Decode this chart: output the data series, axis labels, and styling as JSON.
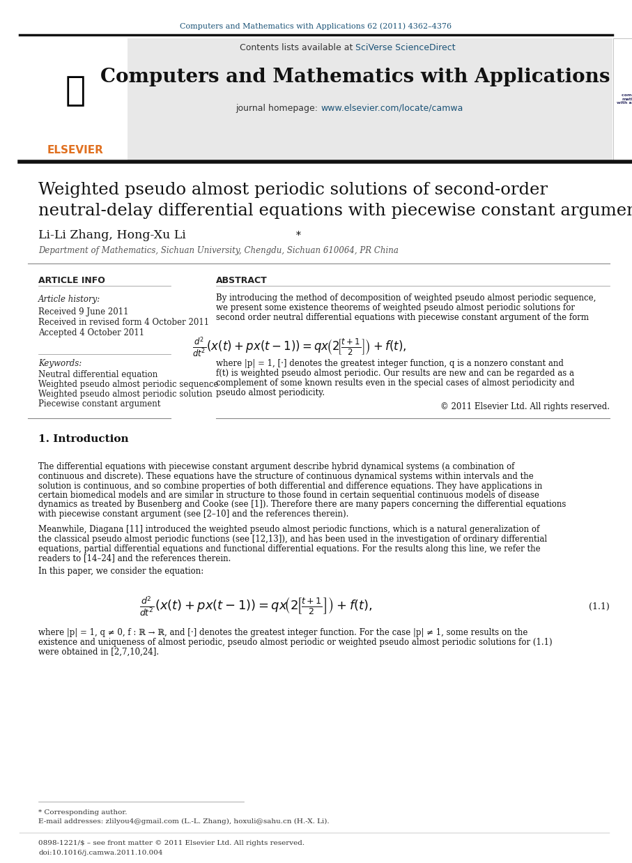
{
  "page_bg": "#ffffff",
  "header_journal_text": "Computers and Mathematics with Applications 62 (2011) 4362–4376",
  "header_journal_color": "#1a5276",
  "header_bar_color": "#1a1a1a",
  "journal_header_bg": "#e8e8e8",
  "journal_title": "Computers and Mathematics with Applications",
  "journal_contents_text": "Contents lists available at ",
  "journal_sciverse_text": "SciVerse ScienceDirect",
  "journal_homepage_text": "journal homepage: ",
  "journal_url": "www.elsevier.com/locate/camwa",
  "link_color": "#1a5276",
  "paper_title_line1": "Weighted pseudo almost periodic solutions of second-order",
  "paper_title_line2": "neutral-delay differential equations with piecewise constant argument",
  "authors": "Li-Li Zhang, Hong-Xu Li*",
  "affiliation": "Department of Mathematics, Sichuan University, Chengdu, Sichuan 610064, PR China",
  "section_article_info": "ARTICLE INFO",
  "section_abstract": "ABSTRACT",
  "article_history_label": "Article history:",
  "received1": "Received 9 June 2011",
  "received2": "Received in revised form 4 October 2011",
  "accepted": "Accepted 4 October 2011",
  "keywords_label": "Keywords:",
  "keywords": [
    "Neutral differential equation",
    "Weighted pseudo almost periodic sequence",
    "Weighted pseudo almost periodic solution",
    "Piecewise constant argument"
  ],
  "abstract_text": "By introducing the method of decomposition of weighted pseudo almost periodic sequence, we present some existence theorems of weighted pseudo almost periodic solutions for second order neutral differential equations with piecewise constant argument of the form",
  "abstract_text2": "where |p| = 1, [·] denotes the greatest integer function, q is a nonzero constant and f(t) is weighted pseudo almost periodic. Our results are new and can be regarded as a complement of some known results even in the special cases of almost periodicity and pseudo almost periodicity.",
  "copyright": "© 2011 Elsevier Ltd. All rights reserved.",
  "intro_title": "1. Introduction",
  "intro_para1": "The differential equations with piecewise constant argument describe hybrid dynamical systems (a combination of continuous and discrete). These equations have the structure of continuous dynamical systems within intervals and the solution is continuous, and so combine properties of both differential and difference equations. They have applications in certain biomedical models and are similar in structure to those found in certain sequential continuous models of disease dynamics as treated by Busenberg and Cooke (see [1]). Therefore there are many papers concerning the differential equations with piecewise constant argument (see [2–10] and the references therein).",
  "intro_para2": "Meanwhile, Diagana [11] introduced the weighted pseudo almost periodic functions, which is a natural generalization of the classical pseudo almost periodic functions (see [12,13]), and has been used in the investigation of ordinary differential equations, partial differential equations and functional differential equations. For the results along this line, we refer the readers to [14–24] and the references therein.",
  "intro_para3": "In this paper, we consider the equation:",
  "equation_label": "(1.1)",
  "eq_text": "d²/dt²(x(t) + px(t − 1)) = qx(2[⌈t+1/2⌉]) + f(t),",
  "footnote_star": "* Corresponding author.",
  "footnote_email": "E-mail addresses: zlilyou4@gmail.com (L.-L. Zhang), hoxuli@sahu.cn (H.-X. Li).",
  "footnote_issn": "0898-1221/$ – see front matter © 2011 Elsevier Ltd. All rights reserved.",
  "footnote_doi": "doi:10.1016/j.camwa.2011.10.004",
  "text_color": "#000000",
  "gray_text": "#555555",
  "elsevier_orange": "#e07020"
}
